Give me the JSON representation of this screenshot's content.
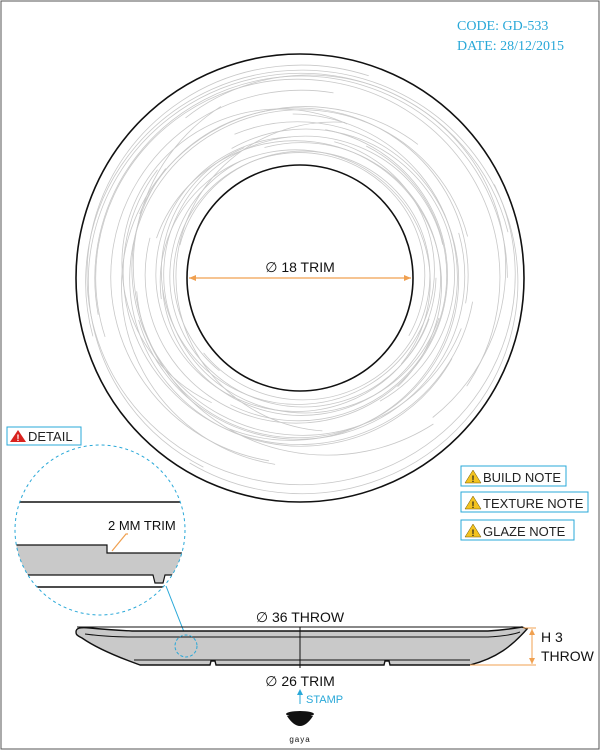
{
  "meta": {
    "code": "CODE: GD-533",
    "date": "DATE: 28/12/2015"
  },
  "top_view": {
    "inner_diameter_label": "∅ 18 TRIM"
  },
  "detail": {
    "badge_label": "DETAIL",
    "trim_callout": "2 MM TRIM"
  },
  "notes": [
    {
      "label": "BUILD NOTE"
    },
    {
      "label": "TEXTURE NOTE"
    },
    {
      "label": "GLAZE NOTE"
    }
  ],
  "section_view": {
    "outer_diameter_label": "∅ 36 THROW",
    "base_diameter_label": "∅ 26 TRIM",
    "height_label_line1": "H 3",
    "height_label_line2": "THROW",
    "stamp_label": "STAMP"
  },
  "logo": {
    "text": "gaya"
  },
  "colors": {
    "accent_blue": "#29a8d8",
    "dimension_orange": "#f0a050",
    "warning_red": "#d8221e",
    "warning_yellow": "#f3c320",
    "section_fill": "#c9c9c9",
    "texture_grey": "#c8c8c8"
  }
}
